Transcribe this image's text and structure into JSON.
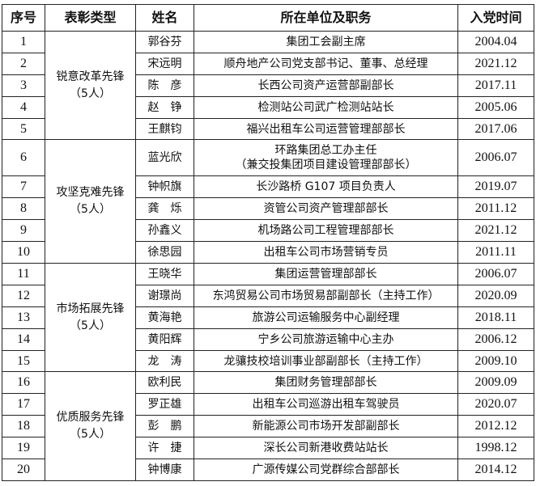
{
  "headers": [
    "序号",
    "表彰类型",
    "姓名",
    "所在单位及职务",
    "入党时间"
  ],
  "groups": [
    {
      "type": "锐意改革先锋",
      "count": "（5人）",
      "rows": [
        {
          "no": "1",
          "name": "郭谷芬",
          "position": "集团工会副主席",
          "date": "2004.04"
        },
        {
          "no": "2",
          "name": "宋远明",
          "position": "顺舟地产公司党支部书记、董事、总经理",
          "date": "2021.12"
        },
        {
          "no": "3",
          "name": "陈　彦",
          "position": "长西公司资产运营部副部长",
          "date": "2017.11"
        },
        {
          "no": "4",
          "name": "赵　铮",
          "position": "检测站公司武广检测站站长",
          "date": "2005.06"
        },
        {
          "no": "5",
          "name": "王麒钧",
          "position": "福兴出租车公司运营管理部部长",
          "date": "2017.06"
        }
      ]
    },
    {
      "type": "攻坚克难先锋",
      "count": "（5人）",
      "rows": [
        {
          "no": "6",
          "name": "蓝光欣",
          "position": "环路集团总工办主任",
          "position2": "（兼交投集团项目建设管理部部长）",
          "date": "2006.07"
        },
        {
          "no": "7",
          "name": "钟帜旗",
          "position": "长沙路桥 G107 项目负责人",
          "date": "2019.07"
        },
        {
          "no": "8",
          "name": "龚　烁",
          "position": "资管公司资产管理部部长",
          "date": "2011.12"
        },
        {
          "no": "9",
          "name": "孙鑫义",
          "position": "机场路公司工程管理部部长",
          "date": "2021.12"
        },
        {
          "no": "10",
          "name": "徐思园",
          "position": "出租车公司市场营销专员",
          "date": "2011.11"
        }
      ]
    },
    {
      "type": "市场拓展先锋",
      "count": "（5人）",
      "rows": [
        {
          "no": "11",
          "name": "王晓华",
          "position": "集团运营管理部部长",
          "date": "2006.07"
        },
        {
          "no": "12",
          "name": "谢璟尚",
          "position": "东鸿贸易公司市场贸易部副部长（主持工作）",
          "date": "2020.09"
        },
        {
          "no": "13",
          "name": "黄海艳",
          "position": "旅游公司运输服务中心副经理",
          "date": "2018.11"
        },
        {
          "no": "14",
          "name": "黄阳辉",
          "position": "宁乡公司旅游运输中心主办",
          "date": "2006.12"
        },
        {
          "no": "15",
          "name": "龙　涛",
          "position": "龙骧技校培训事业部副部长（主持工作）",
          "date": "2009.10"
        }
      ]
    },
    {
      "type": "优质服务先锋",
      "count": "（5人）",
      "rows": [
        {
          "no": "16",
          "name": "欧利民",
          "position": "集团财务管理部部长",
          "date": "2009.09"
        },
        {
          "no": "17",
          "name": "罗正雄",
          "position": "出租车公司巡游出租车驾驶员",
          "date": "2020.07"
        },
        {
          "no": "18",
          "name": "彭　鹏",
          "position": "新能源公司市场开发部副部长",
          "date": "2012.12"
        },
        {
          "no": "19",
          "name": "许　捷",
          "position": "深长公司新港收费站站长",
          "date": "1998.12"
        },
        {
          "no": "20",
          "name": "钟博康",
          "position": "广源传媒公司党群综合部部长",
          "date": "2014.12"
        }
      ]
    }
  ]
}
